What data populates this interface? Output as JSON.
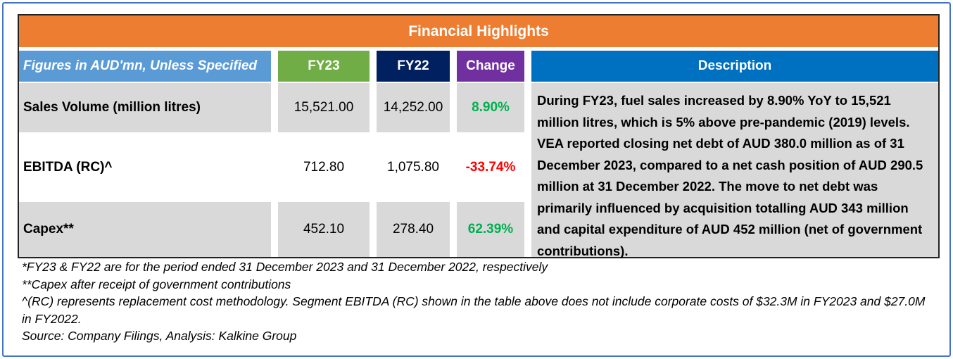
{
  "title": "Financial Highlights",
  "headers": {
    "label": "Figures in AUD'mn, Unless Specified",
    "fy23": "FY23",
    "fy22": "FY22",
    "change": "Change",
    "description": "Description"
  },
  "rows": [
    {
      "label": "Sales Volume (million litres)",
      "fy23": "15,521.00",
      "fy22": "14,252.00",
      "change": "8.90%"
    },
    {
      "label": "EBITDA (RC)^",
      "fy23": "712.80",
      "fy22": "1,075.80",
      "change": "-33.74%"
    },
    {
      "label": "Capex**",
      "fy23": "452.10",
      "fy22": "278.40",
      "change": "62.39%"
    }
  ],
  "description": "During FY23, fuel sales increased by 8.90% YoY to 15,521 million litres, which is 5% above pre-pandemic (2019) levels. VEA reported closing net debt of AUD 380.0 million as of 31 December 2023, compared to a net cash position of AUD 290.5 million at 31 December 2022. The move to net debt was primarily influenced by acquisition totalling AUD 343 million and capital expenditure of AUD 452 million (net of government contributions).",
  "footnotes": {
    "note1": "*FY23 & FY22 are for the period ended 31 December 2023 and 31 December 2022, respectively",
    "note2": "**Capex after receipt of government contributions",
    "note3": "^(RC) represents replacement cost methodology. Segment EBITDA (RC) shown in the table above does not include corporate costs of $32.3M in FY2023 and $27.0M in FY2022.",
    "source": "Source: Company Filings, Analysis: Kalkine Group"
  },
  "colors": {
    "title_bg": "#ed7d31",
    "label_header_bg": "#5b9bd5",
    "fy23_bg": "#70ad47",
    "fy22_bg": "#002060",
    "change_bg": "#7030a0",
    "description_bg": "#0070c0",
    "positive": "#00b050",
    "negative": "#ff0000"
  }
}
